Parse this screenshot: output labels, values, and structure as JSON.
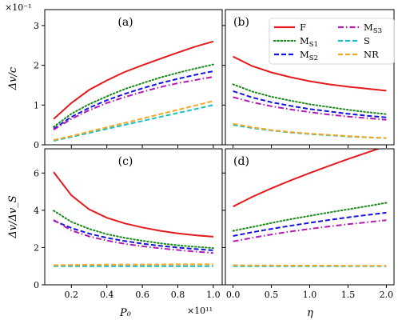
{
  "figure": {
    "top_multiplier": "×10⁻¹",
    "bottom_x_multiplier": "×10¹¹",
    "ylabel_top": "Δv/c",
    "ylabel_bottom": "Δv/Δv_S",
    "xlabel_left": "P₀",
    "xlabel_right": "η"
  },
  "legend": [
    {
      "key": "F",
      "label": "F",
      "color": "#e41a1c",
      "dash": "solid"
    },
    {
      "key": "MS1",
      "label": "M_S1",
      "color": "#1a8a1a",
      "dash": "dotted"
    },
    {
      "key": "MS2",
      "label": "M_S2",
      "color": "#1414e0",
      "dash": "dashed"
    },
    {
      "key": "MS3",
      "label": "M_S3",
      "color": "#b21ab2",
      "dash": "dashdot"
    },
    {
      "key": "S",
      "label": "S",
      "color": "#19bfbf",
      "dash": "dashed"
    },
    {
      "key": "NR",
      "label": "NR",
      "color": "#f5a623",
      "dash": "dashed"
    }
  ],
  "chart_data": [
    {
      "type": "line",
      "panel": "(a)",
      "xlabel": "",
      "ylabel": "Δv/c",
      "xlim": [
        0.05,
        1.05
      ],
      "ylim": [
        0,
        3.4
      ],
      "xticks": [
        0.2,
        0.4,
        0.6,
        0.8,
        1.0
      ],
      "yticks": [
        0,
        1,
        2,
        3
      ],
      "show_xticklabels": false,
      "x": [
        0.1,
        0.2,
        0.3,
        0.4,
        0.5,
        0.6,
        0.7,
        0.8,
        0.9,
        1.0
      ],
      "series": [
        {
          "name": "F",
          "values": [
            0.65,
            1.05,
            1.38,
            1.62,
            1.83,
            2.0,
            2.16,
            2.32,
            2.47,
            2.6
          ]
        },
        {
          "name": "MS1",
          "values": [
            0.45,
            0.78,
            1.02,
            1.22,
            1.4,
            1.55,
            1.69,
            1.81,
            1.92,
            2.02
          ]
        },
        {
          "name": "MS2",
          "values": [
            0.4,
            0.7,
            0.93,
            1.12,
            1.28,
            1.42,
            1.55,
            1.66,
            1.76,
            1.85
          ]
        },
        {
          "name": "MS3",
          "values": [
            0.38,
            0.65,
            0.87,
            1.05,
            1.2,
            1.33,
            1.45,
            1.55,
            1.63,
            1.71
          ]
        },
        {
          "name": "S",
          "values": [
            0.1,
            0.2,
            0.3,
            0.4,
            0.5,
            0.6,
            0.7,
            0.8,
            0.9,
            1.0
          ]
        },
        {
          "name": "NR",
          "values": [
            0.12,
            0.22,
            0.33,
            0.44,
            0.55,
            0.66,
            0.77,
            0.88,
            0.99,
            1.1
          ]
        }
      ]
    },
    {
      "type": "line",
      "panel": "(b)",
      "xlabel": "",
      "ylabel": "",
      "xlim": [
        -0.1,
        2.1
      ],
      "ylim": [
        0,
        3.4
      ],
      "xticks": [
        0.0,
        0.5,
        1.0,
        1.5,
        2.0
      ],
      "yticks": [
        0,
        1,
        2,
        3
      ],
      "show_xticklabels": false,
      "show_yticklabels": false,
      "x": [
        0.0,
        0.25,
        0.5,
        0.75,
        1.0,
        1.25,
        1.5,
        1.75,
        2.0
      ],
      "series": [
        {
          "name": "F",
          "values": [
            2.22,
            1.98,
            1.82,
            1.7,
            1.6,
            1.52,
            1.46,
            1.41,
            1.36
          ]
        },
        {
          "name": "MS1",
          "values": [
            1.52,
            1.34,
            1.21,
            1.11,
            1.02,
            0.95,
            0.88,
            0.82,
            0.77
          ]
        },
        {
          "name": "MS2",
          "values": [
            1.35,
            1.19,
            1.07,
            0.98,
            0.9,
            0.84,
            0.78,
            0.73,
            0.69
          ]
        },
        {
          "name": "MS3",
          "values": [
            1.2,
            1.07,
            0.97,
            0.89,
            0.82,
            0.76,
            0.71,
            0.67,
            0.63
          ]
        },
        {
          "name": "S",
          "values": [
            0.5,
            0.42,
            0.36,
            0.31,
            0.27,
            0.24,
            0.21,
            0.19,
            0.17
          ]
        },
        {
          "name": "NR",
          "values": [
            0.53,
            0.44,
            0.37,
            0.32,
            0.28,
            0.25,
            0.22,
            0.19,
            0.17
          ]
        }
      ]
    },
    {
      "type": "line",
      "panel": "(c)",
      "xlabel": "P₀",
      "ylabel": "Δv/Δv_S",
      "xlim": [
        0.05,
        1.05
      ],
      "ylim": [
        0,
        7.3
      ],
      "xticks": [
        0.2,
        0.4,
        0.6,
        0.8,
        1.0
      ],
      "xticklabels": [
        "0.2",
        "0.4",
        "0.6",
        "0.8",
        "1.0"
      ],
      "yticks": [
        0,
        2,
        4,
        6
      ],
      "x": [
        0.1,
        0.2,
        0.3,
        0.4,
        0.5,
        0.6,
        0.7,
        0.8,
        0.9,
        1.0
      ],
      "series": [
        {
          "name": "F",
          "values": [
            6.05,
            4.8,
            4.05,
            3.6,
            3.3,
            3.08,
            2.9,
            2.76,
            2.66,
            2.58
          ]
        },
        {
          "name": "MS1",
          "values": [
            3.98,
            3.38,
            3.0,
            2.72,
            2.52,
            2.36,
            2.23,
            2.12,
            2.04,
            1.97
          ]
        },
        {
          "name": "MS2",
          "values": [
            3.45,
            3.05,
            2.75,
            2.52,
            2.35,
            2.21,
            2.09,
            2.0,
            1.92,
            1.85
          ]
        },
        {
          "name": "MS3",
          "values": [
            3.48,
            2.92,
            2.6,
            2.38,
            2.2,
            2.07,
            1.96,
            1.87,
            1.78,
            1.71
          ]
        },
        {
          "name": "S",
          "values": [
            1,
            1,
            1,
            1,
            1,
            1,
            1,
            1,
            1,
            1
          ]
        },
        {
          "name": "NR",
          "values": [
            1.05,
            1.06,
            1.07,
            1.08,
            1.08,
            1.09,
            1.09,
            1.1,
            1.1,
            1.1
          ]
        }
      ]
    },
    {
      "type": "line",
      "panel": "(d)",
      "xlabel": "η",
      "ylabel": "",
      "xlim": [
        -0.1,
        2.1
      ],
      "ylim": [
        0,
        7.3
      ],
      "xticks": [
        0.0,
        0.5,
        1.0,
        1.5,
        2.0
      ],
      "xticklabels": [
        "0.0",
        "0.5",
        "1.0",
        "1.5",
        "2.0"
      ],
      "yticks": [
        0,
        2,
        4,
        6
      ],
      "show_yticklabels": false,
      "x": [
        0.0,
        0.25,
        0.5,
        0.75,
        1.0,
        1.25,
        1.5,
        1.75,
        2.0
      ],
      "series": [
        {
          "name": "F",
          "values": [
            4.2,
            4.72,
            5.18,
            5.6,
            6.0,
            6.38,
            6.75,
            7.1,
            7.45
          ]
        },
        {
          "name": "MS1",
          "values": [
            2.9,
            3.1,
            3.32,
            3.52,
            3.7,
            3.88,
            4.05,
            4.22,
            4.4
          ]
        },
        {
          "name": "MS2",
          "values": [
            2.62,
            2.82,
            3.0,
            3.17,
            3.33,
            3.48,
            3.62,
            3.75,
            3.87
          ]
        },
        {
          "name": "MS3",
          "values": [
            2.33,
            2.52,
            2.7,
            2.86,
            3.0,
            3.13,
            3.25,
            3.36,
            3.47
          ]
        },
        {
          "name": "S",
          "values": [
            1,
            1,
            1,
            1,
            1,
            1,
            1,
            1,
            1
          ]
        },
        {
          "name": "NR",
          "values": [
            1.05,
            1.04,
            1.04,
            1.03,
            1.03,
            1.03,
            1.02,
            1.02,
            1.02
          ]
        }
      ]
    }
  ]
}
